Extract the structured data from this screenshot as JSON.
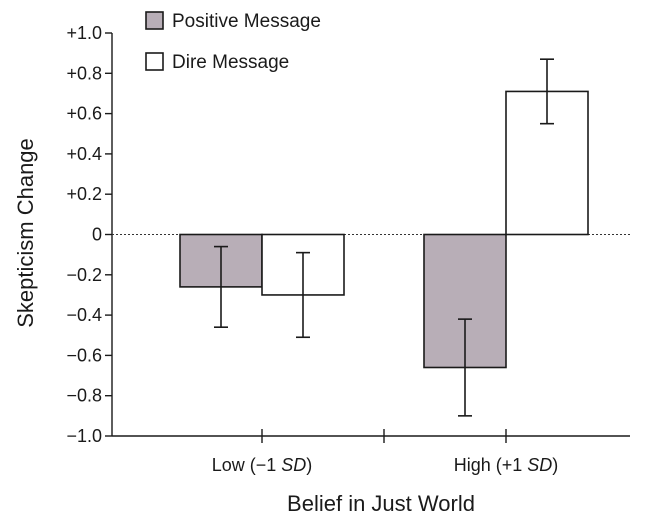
{
  "chart_data": {
    "type": "bar",
    "categories": [
      "Low (−1 ",
      "High (+1 "
    ],
    "category_italic": [
      "SD",
      "SD"
    ],
    "category_suffix": [
      ")",
      ")"
    ],
    "series": [
      {
        "name": "Positive Message",
        "values": [
          -0.26,
          -0.66
        ],
        "error": [
          0.2,
          0.24
        ],
        "color": "#b8aeb7"
      },
      {
        "name": "Dire Message",
        "values": [
          -0.3,
          0.71
        ],
        "error": [
          0.21,
          0.16
        ],
        "color": "#ffffff"
      }
    ],
    "xlabel": "Belief in Just World",
    "ylabel": "Skepticism Change",
    "ylim": [
      -1.0,
      1.0
    ],
    "yticks": [
      1.0,
      0.8,
      0.6,
      0.4,
      0.2,
      0,
      -0.2,
      -0.4,
      -0.6,
      -0.8,
      -1.0
    ],
    "ytick_labels": [
      "+1.0",
      "+0.8",
      "+0.6",
      "+0.4",
      "+0.2",
      "0",
      "−0.2",
      "−0.4",
      "−0.6",
      "−0.8",
      "−1.0"
    ],
    "zero_line": "dotted",
    "grid": false,
    "legend_position": "top-left"
  }
}
